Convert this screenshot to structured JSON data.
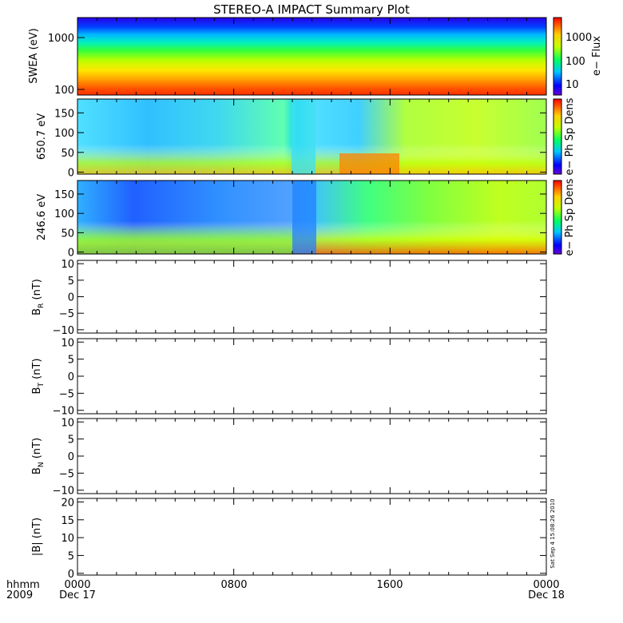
{
  "title": "STEREO-A IMPACT Summary Plot",
  "stamp": "Sat Sep  4 15:08:26 2010",
  "time_axis": {
    "row1_label": "hhmm",
    "row2_label": "2009",
    "ticks": [
      {
        "hhmm": "0000",
        "date": "Dec 17"
      },
      {
        "hhmm": "0800",
        "date": ""
      },
      {
        "hhmm": "1600",
        "date": ""
      },
      {
        "hhmm": "0000",
        "date": "Dec 18"
      }
    ]
  },
  "chart_data": [
    {
      "type": "heatmap",
      "panel": "swea",
      "ylabel": "SWEA (eV)",
      "yscale": "log",
      "ylim": [
        90,
        2000
      ],
      "ytick_labels": [
        "1000",
        "100"
      ],
      "colorbar": {
        "label": "e− Flux",
        "scale": "log",
        "ticks": [
          "1000",
          "100",
          "10"
        ]
      },
      "description_values": {
        "low_energy": "high flux",
        "high_energy": "low flux"
      }
    },
    {
      "type": "heatmap",
      "panel": "pad_650",
      "ylabel": "650.7 eV",
      "ylim": [
        -5,
        185
      ],
      "ytick_labels": [
        "0",
        "50",
        "100",
        "150"
      ],
      "colorbar": {
        "label": "e− Ph Sp Dens",
        "ticks": []
      }
    },
    {
      "type": "heatmap",
      "panel": "pad_246",
      "ylabel": "246.6 eV",
      "ylim": [
        -5,
        185
      ],
      "ytick_labels": [
        "0",
        "50",
        "100",
        "150"
      ],
      "colorbar": {
        "label": "e− Ph Sp Dens",
        "ticks": []
      }
    },
    {
      "type": "line",
      "panel": "br",
      "ylabel": "B",
      "ylabel_sub": "R",
      "ylabel_unit": " (nT)",
      "ylim": [
        -11,
        11
      ],
      "ytick_labels": [
        "10",
        "5",
        "0",
        "−5",
        "−10"
      ],
      "series": []
    },
    {
      "type": "line",
      "panel": "bt",
      "ylabel": "B",
      "ylabel_sub": "T",
      "ylabel_unit": " (nT)",
      "ylim": [
        -11,
        11
      ],
      "ytick_labels": [
        "10",
        "5",
        "0",
        "−5",
        "−10"
      ],
      "series": []
    },
    {
      "type": "line",
      "panel": "bn",
      "ylabel": "B",
      "ylabel_sub": "N",
      "ylabel_unit": " (nT)",
      "ylim": [
        -11,
        11
      ],
      "ytick_labels": [
        "10",
        "5",
        "0",
        "−5",
        "−10"
      ],
      "series": []
    },
    {
      "type": "line",
      "panel": "bmag",
      "ylabel": "|B| (nT)",
      "ylim": [
        -0.5,
        21
      ],
      "ytick_labels": [
        "20",
        "15",
        "10",
        "5",
        "0"
      ],
      "series": []
    }
  ]
}
